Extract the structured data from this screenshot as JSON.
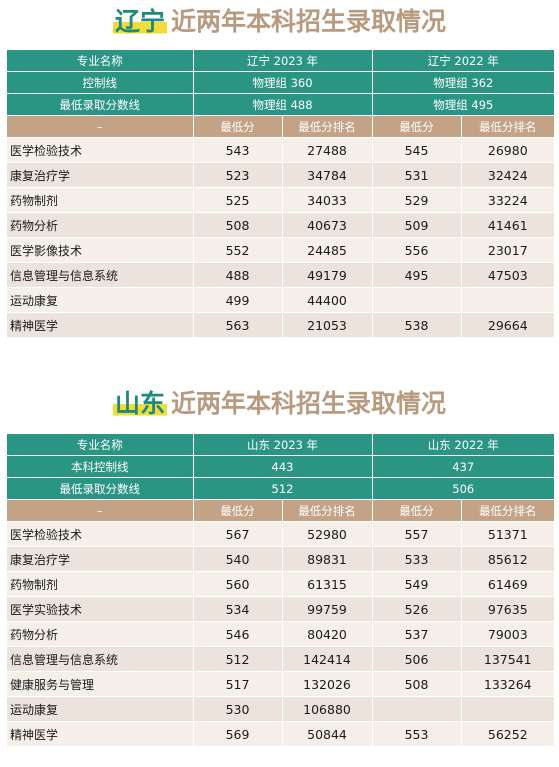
{
  "liaoning": {
    "title_province": "辽宁",
    "title_rest": "近两年本科招生录取情况",
    "header": {
      "major_label": "专业名称",
      "year1": "辽宁 2023 年",
      "year2": "辽宁 2022 年"
    },
    "control_line": {
      "label": "控制线",
      "year1": "物理组 360",
      "year2": "物理组 362"
    },
    "min_score_line": {
      "label": "最低录取分数线",
      "year1": "物理组 488",
      "year2": "物理组 495"
    },
    "subheader": {
      "dash": "–",
      "min_score": "最低分",
      "min_rank": "最低分排名",
      "min_score2": "最低分",
      "min_rank2": "最低分排名"
    },
    "rows": [
      {
        "major": "医学检验技术",
        "s1": "543",
        "r1": "27488",
        "s2": "545",
        "r2": "26980"
      },
      {
        "major": "康复治疗学",
        "s1": "523",
        "r1": "34784",
        "s2": "531",
        "r2": "32424"
      },
      {
        "major": "药物制剂",
        "s1": "525",
        "r1": "34033",
        "s2": "529",
        "r2": "33224"
      },
      {
        "major": "药物分析",
        "s1": "508",
        "r1": "40673",
        "s2": "509",
        "r2": "41461"
      },
      {
        "major": "医学影像技术",
        "s1": "552",
        "r1": "24485",
        "s2": "556",
        "r2": "23017"
      },
      {
        "major": "信息管理与信息系统",
        "s1": "488",
        "r1": "49179",
        "s2": "495",
        "r2": "47503"
      },
      {
        "major": "运动康复",
        "s1": "499",
        "r1": "44400",
        "s2": "",
        "r2": ""
      },
      {
        "major": "精神医学",
        "s1": "563",
        "r1": "21053",
        "s2": "538",
        "r2": "29664"
      }
    ]
  },
  "shandong": {
    "title_province": "山东",
    "title_rest": "近两年本科招生录取情况",
    "header": {
      "major_label": "专业名称",
      "year1": "山东 2023 年",
      "year2": "山东 2022 年"
    },
    "control_line": {
      "label": "本科控制线",
      "year1": "443",
      "year2": "437"
    },
    "min_score_line": {
      "label": "最低录取分数线",
      "year1": "512",
      "year2": "506"
    },
    "subheader": {
      "dash": "–",
      "min_score": "最低分",
      "min_rank": "最低分排名",
      "min_score2": "最低分",
      "min_rank2": "最低分排名"
    },
    "rows": [
      {
        "major": "医学检验技术",
        "s1": "567",
        "r1": "52980",
        "s2": "557",
        "r2": "51371"
      },
      {
        "major": "康复治疗学",
        "s1": "540",
        "r1": "89831",
        "s2": "533",
        "r2": "85612"
      },
      {
        "major": "药物制剂",
        "s1": "560",
        "r1": "61315",
        "s2": "549",
        "r2": "61469"
      },
      {
        "major": "医学实验技术",
        "s1": "534",
        "r1": "99759",
        "s2": "526",
        "r2": "97635"
      },
      {
        "major": "药物分析",
        "s1": "546",
        "r1": "80420",
        "s2": "537",
        "r2": "79003"
      },
      {
        "major": "信息管理与信息系统",
        "s1": "512",
        "r1": "142414",
        "s2": "506",
        "r2": "137541"
      },
      {
        "major": "健康服务与管理",
        "s1": "517",
        "r1": "132026",
        "s2": "508",
        "r2": "133264"
      },
      {
        "major": "运动康复",
        "s1": "530",
        "r1": "106880",
        "s2": "",
        "r2": ""
      },
      {
        "major": "精神医学",
        "s1": "569",
        "r1": "50844",
        "s2": "553",
        "r2": "56252"
      }
    ]
  }
}
